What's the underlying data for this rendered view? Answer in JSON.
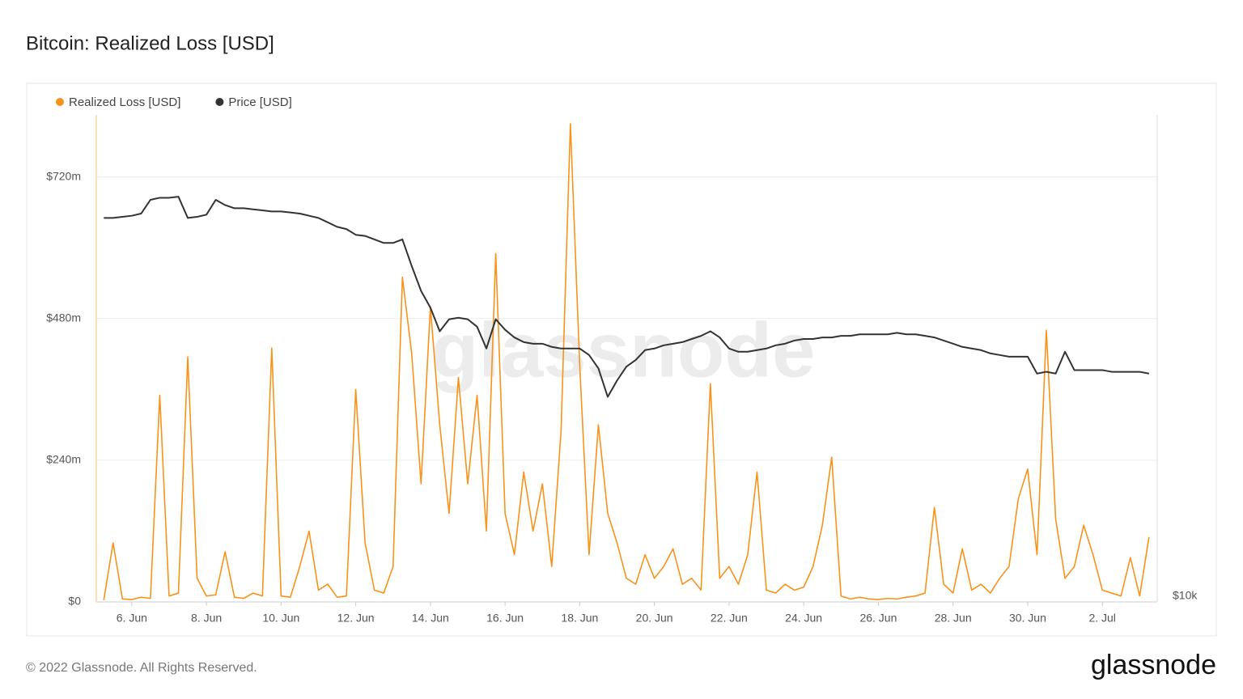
{
  "chart_data": {
    "type": "line",
    "title": "Bitcoin: Realized Loss [USD]",
    "watermark": "glassnode",
    "footer": "© 2022 Glassnode. All Rights Reserved.",
    "logo": "glassnode",
    "legend_position": "top-left",
    "grid": true,
    "y2_scale": "log",
    "xlim": [
      5.05,
      33.47
    ],
    "xticks": [
      {
        "value": 6,
        "label": "6. Jun"
      },
      {
        "value": 8,
        "label": "8. Jun"
      },
      {
        "value": 10,
        "label": "10. Jun"
      },
      {
        "value": 12,
        "label": "12. Jun"
      },
      {
        "value": 14,
        "label": "14. Jun"
      },
      {
        "value": 16,
        "label": "16. Jun"
      },
      {
        "value": 18,
        "label": "18. Jun"
      },
      {
        "value": 20,
        "label": "20. Jun"
      },
      {
        "value": 22,
        "label": "22. Jun"
      },
      {
        "value": 24,
        "label": "24. Jun"
      },
      {
        "value": 26,
        "label": "26. Jun"
      },
      {
        "value": 28,
        "label": "28. Jun"
      },
      {
        "value": 30,
        "label": "30. Jun"
      },
      {
        "value": 32,
        "label": "2. Jul"
      }
    ],
    "ylim": [
      0,
      825000000
    ],
    "yticks": [
      {
        "value": 0,
        "label": "$0"
      },
      {
        "value": 240000000,
        "label": "$240m"
      },
      {
        "value": 480000000,
        "label": "$480m"
      },
      {
        "value": 720000000,
        "label": "$720m"
      }
    ],
    "y2lim": [
      10000,
      42000
    ],
    "y2ticks": [
      {
        "value": 10000,
        "label": "$10k"
      }
    ],
    "x": [
      5.25,
      5.5,
      5.75,
      6,
      6.25,
      6.5,
      6.75,
      7,
      7.25,
      7.5,
      7.75,
      8,
      8.25,
      8.5,
      8.75,
      9,
      9.25,
      9.5,
      9.75,
      10,
      10.25,
      10.5,
      10.75,
      11,
      11.25,
      11.5,
      11.75,
      12,
      12.25,
      12.5,
      12.75,
      13,
      13.25,
      13.5,
      13.75,
      14,
      14.25,
      14.5,
      14.75,
      15,
      15.25,
      15.5,
      15.75,
      16,
      16.25,
      16.5,
      16.75,
      17,
      17.25,
      17.5,
      17.75,
      18,
      18.25,
      18.5,
      18.75,
      19,
      19.25,
      19.5,
      19.75,
      20,
      20.25,
      20.5,
      20.75,
      21,
      21.25,
      21.5,
      21.75,
      22,
      22.25,
      22.5,
      22.75,
      23,
      23.25,
      23.5,
      23.75,
      24,
      24.25,
      24.5,
      24.75,
      25,
      25.25,
      25.5,
      25.75,
      26,
      26.25,
      26.5,
      26.75,
      27,
      27.25,
      27.5,
      27.75,
      28,
      28.25,
      28.5,
      28.75,
      29,
      29.25,
      29.5,
      29.75,
      30,
      30.25,
      30.5,
      30.75,
      31,
      31.25,
      31.5,
      31.75,
      32,
      32.25,
      32.5,
      32.75,
      33,
      33.25
    ],
    "series": [
      {
        "name": "Realized Loss [USD]",
        "color": "#f7931a",
        "values": [
          3000000.0,
          100000000.0,
          5000000.0,
          4000000.0,
          8000000.0,
          6000000.0,
          350000000.0,
          10000000.0,
          15000000.0,
          415000000.0,
          40000000.0,
          10000000.0,
          12000000.0,
          85000000.0,
          8000000.0,
          6000000.0,
          15000000.0,
          10000000.0,
          430000000.0,
          10000000.0,
          8000000.0,
          60000000.0,
          120000000.0,
          20000000.0,
          30000000.0,
          8000000.0,
          10000000.0,
          360000000.0,
          100000000.0,
          20000000.0,
          15000000.0,
          60000000.0,
          550000000.0,
          420000000.0,
          200000000.0,
          500000000.0,
          300000000.0,
          150000000.0,
          380000000.0,
          200000000.0,
          350000000.0,
          120000000.0,
          590000000.0,
          150000000.0,
          80000000.0,
          220000000.0,
          120000000.0,
          200000000.0,
          60000000.0,
          290000000.0,
          810000000.0,
          400000000.0,
          80000000.0,
          300000000.0,
          150000000.0,
          100000000.0,
          40000000.0,
          30000000.0,
          80000000.0,
          40000000.0,
          60000000.0,
          90000000.0,
          30000000.0,
          40000000.0,
          20000000.0,
          370000000.0,
          40000000.0,
          60000000.0,
          30000000.0,
          80000000.0,
          220000000.0,
          20000000.0,
          15000000.0,
          30000000.0,
          20000000.0,
          25000000.0,
          60000000.0,
          130000000.0,
          245000000.0,
          10000000.0,
          5000000.0,
          8000000.0,
          5000000.0,
          4000000.0,
          6000000.0,
          5000000.0,
          8000000.0,
          10000000.0,
          15000000.0,
          160000000.0,
          30000000.0,
          15000000.0,
          90000000.0,
          20000000.0,
          30000000.0,
          15000000.0,
          40000000.0,
          60000000.0,
          175000000.0,
          225000000.0,
          80000000.0,
          460000000.0,
          140000000.0,
          40000000.0,
          60000000.0,
          130000000.0,
          80000000.0,
          20000000.0,
          15000000.0,
          10000000.0,
          75000000.0,
          10000000.0,
          110000000.0
        ]
      },
      {
        "name": "Price [USD]",
        "color": "#333333",
        "axis": "y2",
        "values": [
          31000,
          31000,
          31100,
          31200,
          31400,
          32700,
          32900,
          32900,
          33000,
          31000,
          31100,
          31300,
          32700,
          32200,
          31900,
          31900,
          31800,
          31700,
          31600,
          31600,
          31500,
          31400,
          31200,
          31000,
          30600,
          30200,
          30000,
          29500,
          29400,
          29100,
          28800,
          28800,
          29100,
          26900,
          25000,
          23800,
          22200,
          23000,
          23100,
          23000,
          22500,
          21100,
          23000,
          22300,
          21800,
          21500,
          21400,
          21400,
          21200,
          21100,
          21100,
          21100,
          20700,
          19900,
          18300,
          19200,
          20000,
          20400,
          21000,
          21100,
          21300,
          21400,
          21500,
          21700,
          21900,
          22200,
          21800,
          21100,
          20900,
          20900,
          21000,
          21100,
          21300,
          21400,
          21600,
          21700,
          21700,
          21800,
          21800,
          21900,
          21900,
          22000,
          22000,
          22000,
          22000,
          22100,
          22000,
          22000,
          21900,
          21800,
          21600,
          21400,
          21200,
          21100,
          21000,
          20800,
          20700,
          20600,
          20600,
          20600,
          19600,
          19700,
          19600,
          20900,
          19800,
          19800,
          19800,
          19800,
          19700,
          19700,
          19700,
          19700,
          19600
        ]
      }
    ]
  }
}
